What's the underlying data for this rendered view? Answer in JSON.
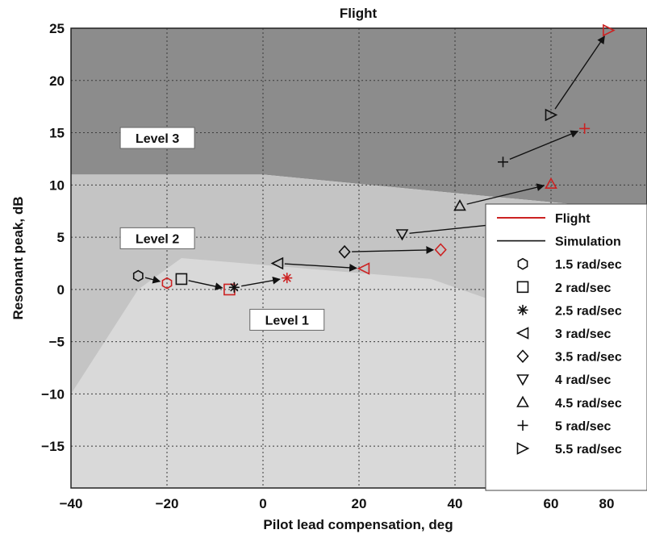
{
  "chart_data": {
    "type": "scatter",
    "title": "Flight",
    "xlabel": "Pilot lead compensation, deg",
    "ylabel": "Resonant peak, dB",
    "xlim": [
      -40,
      80
    ],
    "ylim": [
      -19,
      25
    ],
    "xticks": [
      -40,
      -20,
      0,
      20,
      40,
      60,
      80
    ],
    "yticks": [
      -15,
      -10,
      -5,
      0,
      5,
      10,
      15,
      20,
      25
    ],
    "grid": true,
    "legend_position": "right",
    "colors": {
      "flight": "#cc2222",
      "simulation": "#111111",
      "level1": "#d9d9d9",
      "level2": "#c4c4c4",
      "level3": "#8c8c8c"
    },
    "regions": [
      {
        "label": "Level 3",
        "polygon": [
          [
            -40,
            25
          ],
          [
            80,
            25
          ],
          [
            80,
            7.5
          ],
          [
            45,
            9
          ],
          [
            0,
            11
          ],
          [
            -40,
            11
          ]
        ]
      },
      {
        "label": "Level 2",
        "polygon": [
          [
            -40,
            11
          ],
          [
            0,
            11
          ],
          [
            45,
            9
          ],
          [
            80,
            7.5
          ],
          [
            80,
            -19
          ],
          [
            -40,
            -19
          ]
        ]
      },
      {
        "label": "Level 1",
        "polygon": [
          [
            -40,
            -10
          ],
          [
            -26,
            0
          ],
          [
            -17,
            3
          ],
          [
            35,
            1
          ],
          [
            60,
            -3
          ],
          [
            60,
            -19
          ],
          [
            -40,
            -19
          ]
        ]
      }
    ],
    "level_labels": [
      {
        "text": "Level 3",
        "x": -22,
        "y": 14.5
      },
      {
        "text": "Level 2",
        "x": -22,
        "y": 4.9
      },
      {
        "text": "Level 1",
        "x": 5,
        "y": -2.9
      }
    ],
    "series": [
      {
        "name": "1.5 rad/sec",
        "marker": "hexagon",
        "simulation": [
          -26,
          1.3
        ],
        "flight": [
          -20,
          0.6
        ]
      },
      {
        "name": "2 rad/sec",
        "marker": "square",
        "simulation": [
          -17,
          1.0
        ],
        "flight": [
          -7,
          0.0
        ]
      },
      {
        "name": "2.5 rad/sec",
        "marker": "asterisk",
        "simulation": [
          -6,
          0.2
        ],
        "flight": [
          5,
          1.1
        ]
      },
      {
        "name": "3 rad/sec",
        "marker": "triangle-left",
        "simulation": [
          3,
          2.5
        ],
        "flight": [
          21,
          2.0
        ]
      },
      {
        "name": "3.5 rad/sec",
        "marker": "diamond",
        "simulation": [
          17,
          3.6
        ],
        "flight": [
          37,
          3.8
        ]
      },
      {
        "name": "4 rad/sec",
        "marker": "triangle-down",
        "simulation": [
          29,
          5.3
        ],
        "flight": [
          50,
          6.3
        ]
      },
      {
        "name": "4.5 rad/sec",
        "marker": "triangle-up",
        "simulation": [
          41,
          8.0
        ],
        "flight": [
          60,
          10.1
        ]
      },
      {
        "name": "5 rad/sec",
        "marker": "plus",
        "simulation": [
          50,
          12.2
        ],
        "flight": [
          67,
          15.4
        ]
      },
      {
        "name": "5.5 rad/sec",
        "marker": "triangle-right",
        "simulation": [
          60,
          16.7
        ],
        "flight": [
          72,
          24.8
        ]
      }
    ],
    "legend": {
      "flight_label": "Flight",
      "simulation_label": "Simulation"
    }
  }
}
